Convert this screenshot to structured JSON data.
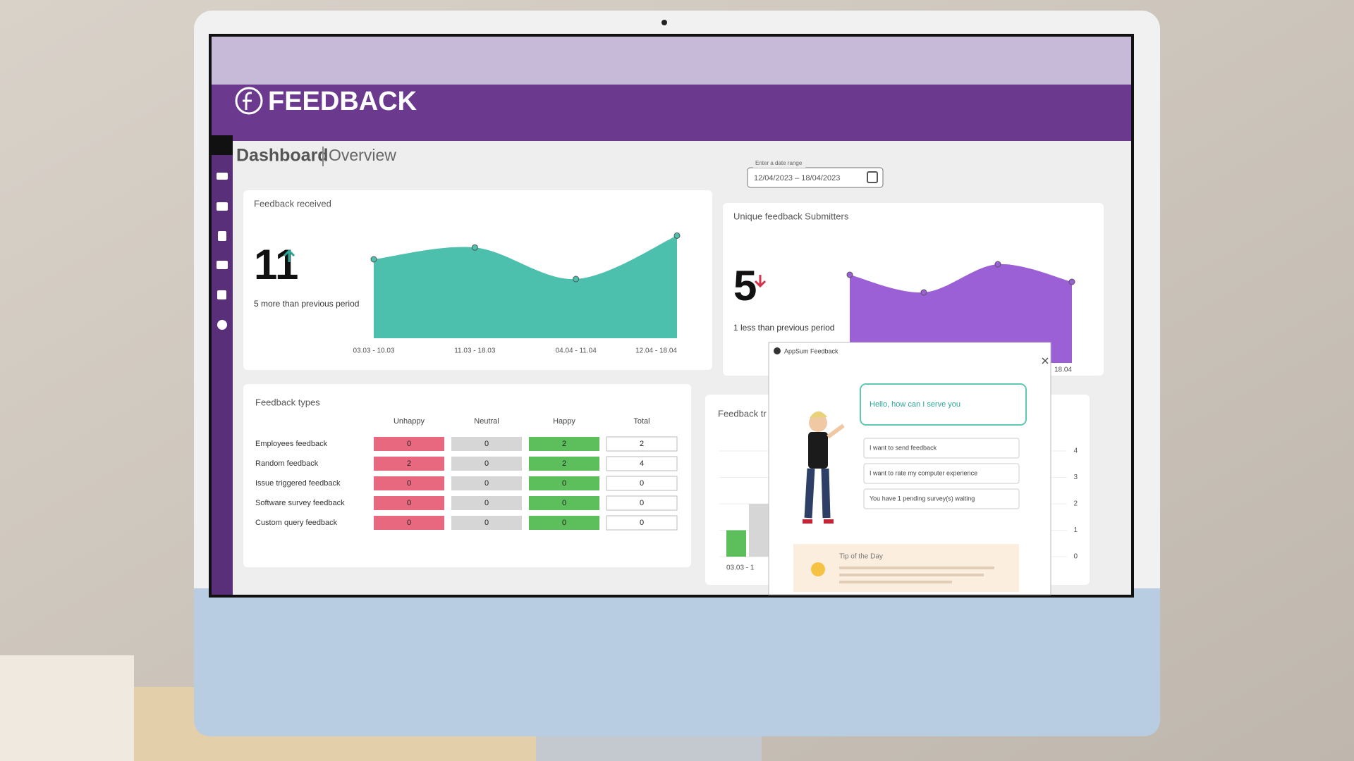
{
  "logo": "FEEDBACK",
  "header": {
    "title": "Dashboard",
    "subtitle": "Overview",
    "date_label": "Enter a date range",
    "date_range": "12/04/2023 – 18/04/2023"
  },
  "kpis": [
    {
      "value": 11,
      "note": "5 more than previous period"
    },
    {
      "value": 5,
      "note": "1 less than previous period"
    }
  ],
  "chart_data": [
    {
      "type": "area",
      "title": "Feedback received",
      "categories": [
        "03.03 - 10.03",
        "11.03 - 18.03",
        "04.04 - 11.04",
        "12.04 - 18.04"
      ],
      "values": [
        4,
        4.6,
        3,
        5.2
      ],
      "color": "#4cbfad"
    },
    {
      "type": "area",
      "title": "Unique feedback Submitters",
      "categories": [
        null,
        null,
        null,
        "18.04"
      ],
      "values": [
        2.5,
        2,
        2.8,
        2.3
      ],
      "color": "#9b5fd6"
    },
    {
      "type": "bar",
      "title": "Feedback tr",
      "categories": [
        "03.03 - 1"
      ],
      "series": [
        {
          "color": "#5cbf5c",
          "values": [
            1
          ]
        },
        {
          "color": "#d6d6d6",
          "values": [
            2
          ]
        }
      ],
      "ylim": [
        0,
        4
      ],
      "yticks": [
        0,
        1,
        2,
        3,
        4
      ]
    }
  ],
  "table": {
    "title": "Feedback types",
    "columns": [
      "Unhappy",
      "Neutral",
      "Happy",
      "Total"
    ],
    "rows": [
      [
        "Employees feedback",
        0,
        0,
        2,
        2
      ],
      [
        "Random feedback",
        2,
        0,
        2,
        4
      ],
      [
        "Issue triggered feedback",
        0,
        0,
        0,
        0
      ],
      [
        "Software survey feedback",
        0,
        0,
        0,
        0
      ],
      [
        "Custom query feedback",
        0,
        0,
        0,
        0
      ]
    ]
  },
  "popup": {
    "title": "AppSum Feedback",
    "greeting": "Hello, how can I serve you",
    "options": [
      "I want to send feedback",
      "I want to rate my computer experience",
      "You have 1 pending survey(s) waiting"
    ],
    "tip_title": "Tip of the Day"
  }
}
